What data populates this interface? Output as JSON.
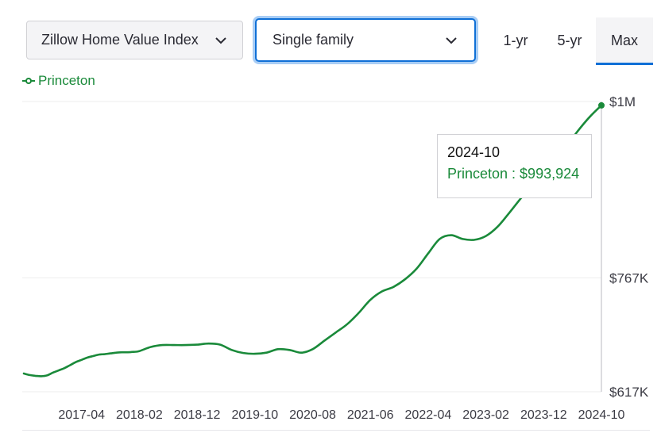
{
  "controls": {
    "metric_select": "Zillow Home Value Index",
    "type_select": "Single family",
    "tabs": [
      "1-yr",
      "5-yr",
      "Max"
    ],
    "active_tab": "Max"
  },
  "colors": {
    "line": "#1a8a3a",
    "accent": "#0f6fd6",
    "grid": "#eeeeee"
  },
  "tooltip": {
    "date": "2024-10",
    "text": "Princeton : $993,924"
  },
  "chart_data": {
    "type": "line",
    "legend_position": "top-left",
    "grid": true,
    "x_tick_labels": [
      "2017-04",
      "2018-02",
      "2018-12",
      "2019-10",
      "2020-08",
      "2021-06",
      "2022-04",
      "2023-02",
      "2023-12",
      "2024-10"
    ],
    "y_tick_labels": [
      "$1M",
      "$767K",
      "$617K"
    ],
    "y_ticks": [
      999000,
      767000,
      617000
    ],
    "ylim": [
      617000,
      999000
    ],
    "series": [
      {
        "name": "Princeton",
        "x": [
          "2016-06",
          "2016-07",
          "2016-08",
          "2016-09",
          "2016-10",
          "2016-11",
          "2016-12",
          "2017-01",
          "2017-02",
          "2017-03",
          "2017-04",
          "2017-05",
          "2017-06",
          "2017-07",
          "2017-08",
          "2017-09",
          "2017-10",
          "2017-11",
          "2017-12",
          "2018-01",
          "2018-02",
          "2018-04",
          "2018-06",
          "2018-08",
          "2018-10",
          "2018-12",
          "2019-02",
          "2019-04",
          "2019-06",
          "2019-08",
          "2019-10",
          "2019-12",
          "2020-02",
          "2020-04",
          "2020-06",
          "2020-08",
          "2020-10",
          "2020-12",
          "2021-02",
          "2021-04",
          "2021-06",
          "2021-08",
          "2021-10",
          "2021-12",
          "2022-02",
          "2022-04",
          "2022-06",
          "2022-08",
          "2022-10",
          "2022-12",
          "2023-02",
          "2023-04",
          "2023-06",
          "2023-08",
          "2023-10",
          "2023-12",
          "2024-02",
          "2024-04",
          "2024-06",
          "2024-08",
          "2024-10"
        ],
        "values": [
          641000,
          639000,
          638000,
          637500,
          638500,
          642000,
          645000,
          648000,
          652000,
          656000,
          659000,
          662000,
          664000,
          666000,
          666500,
          667500,
          668500,
          669000,
          669000,
          669500,
          670500,
          676000,
          678500,
          678500,
          678500,
          679000,
          680500,
          679000,
          672000,
          668000,
          667000,
          668500,
          673000,
          672000,
          668500,
          673000,
          684000,
          695000,
          706000,
          721000,
          738000,
          749000,
          755000,
          765000,
          779000,
          799000,
          818000,
          823000,
          818000,
          817000,
          822000,
          834000,
          852000,
          871000,
          888000,
          904000,
          922000,
          941000,
          961000,
          979000,
          993924
        ]
      }
    ]
  }
}
